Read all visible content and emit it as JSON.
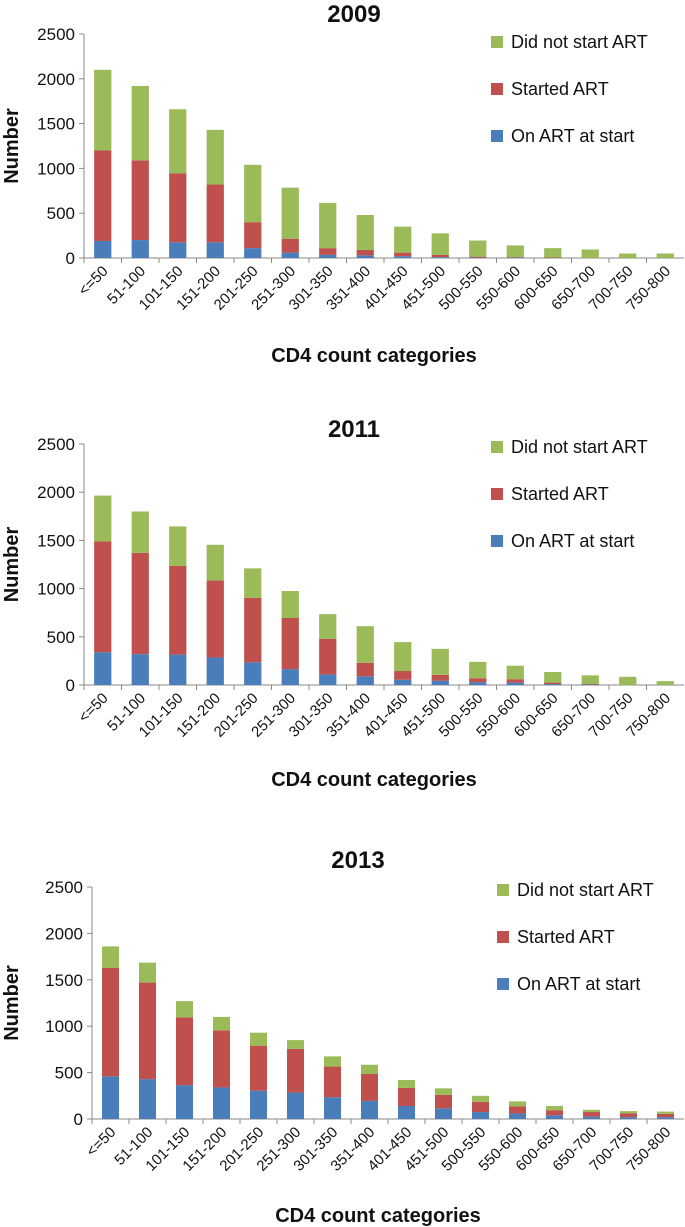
{
  "chart_data": [
    {
      "type": "bar",
      "stacked": true,
      "title": "2009",
      "xlabel": "CD4 count categories",
      "ylabel": "Number",
      "ylim": [
        0,
        2500
      ],
      "yticks": [
        0,
        500,
        1000,
        1500,
        2000,
        2500
      ],
      "categories": [
        "<=50",
        "51-100",
        "101-150",
        "151-200",
        "201-250",
        "251-300",
        "301-350",
        "351-400",
        "401-450",
        "451-500",
        "500-550",
        "550-600",
        "600-650",
        "650-700",
        "700-750",
        "750-800"
      ],
      "series": [
        {
          "name": "On ART at start",
          "color": "#4a7ebb",
          "values": [
            190,
            200,
            175,
            175,
            110,
            60,
            35,
            30,
            20,
            10,
            5,
            5,
            0,
            0,
            0,
            0
          ]
        },
        {
          "name": "Started ART",
          "color": "#c0504d",
          "values": [
            1010,
            890,
            770,
            645,
            290,
            155,
            75,
            60,
            40,
            25,
            10,
            5,
            5,
            0,
            0,
            0
          ]
        },
        {
          "name": "Did not start ART",
          "color": "#9bbb59",
          "values": [
            900,
            830,
            715,
            610,
            640,
            570,
            505,
            390,
            290,
            240,
            180,
            130,
            105,
            95,
            50,
            50
          ]
        }
      ]
    },
    {
      "type": "bar",
      "stacked": true,
      "title": "2011",
      "xlabel": "CD4 count categories",
      "ylabel": "Number",
      "ylim": [
        0,
        2500
      ],
      "yticks": [
        0,
        500,
        1000,
        1500,
        2000,
        2500
      ],
      "categories": [
        "<=50",
        "51-100",
        "101-150",
        "151-200",
        "201-250",
        "251-300",
        "301-350",
        "351-400",
        "401-450",
        "451-500",
        "500-550",
        "550-600",
        "600-650",
        "650-700",
        "700-750",
        "750-800"
      ],
      "series": [
        {
          "name": "On ART at start",
          "color": "#4a7ebb",
          "values": [
            340,
            320,
            315,
            285,
            235,
            165,
            110,
            90,
            55,
            45,
            30,
            25,
            10,
            5,
            0,
            0
          ]
        },
        {
          "name": "Started ART",
          "color": "#c0504d",
          "values": [
            1150,
            1050,
            920,
            800,
            670,
            530,
            370,
            140,
            90,
            60,
            40,
            35,
            15,
            5,
            0,
            0
          ]
        },
        {
          "name": "Did not start ART",
          "color": "#9bbb59",
          "values": [
            475,
            430,
            410,
            370,
            305,
            280,
            255,
            380,
            300,
            270,
            170,
            140,
            110,
            90,
            85,
            40
          ]
        }
      ]
    },
    {
      "type": "bar",
      "stacked": true,
      "title": "2013",
      "xlabel": "CD4 count categories",
      "ylabel": "Number",
      "ylim": [
        0,
        2500
      ],
      "yticks": [
        0,
        500,
        1000,
        1500,
        2000,
        2500
      ],
      "categories": [
        "<=50",
        "51-100",
        "101-150",
        "151-200",
        "201-250",
        "251-300",
        "301-350",
        "351-400",
        "401-450",
        "451-500",
        "500-550",
        "550-600",
        "600-650",
        "650-700",
        "700-750",
        "750-800"
      ],
      "series": [
        {
          "name": "On ART at start",
          "color": "#4a7ebb",
          "values": [
            460,
            430,
            365,
            340,
            305,
            285,
            235,
            195,
            140,
            115,
            75,
            60,
            40,
            25,
            20,
            20
          ]
        },
        {
          "name": "Started ART",
          "color": "#c0504d",
          "values": [
            1170,
            1040,
            730,
            615,
            485,
            470,
            330,
            290,
            195,
            145,
            110,
            75,
            55,
            50,
            40,
            35
          ]
        },
        {
          "name": "Did not start ART",
          "color": "#9bbb59",
          "values": [
            230,
            215,
            175,
            145,
            140,
            95,
            110,
            100,
            85,
            70,
            65,
            55,
            45,
            25,
            25,
            25
          ]
        }
      ]
    }
  ]
}
